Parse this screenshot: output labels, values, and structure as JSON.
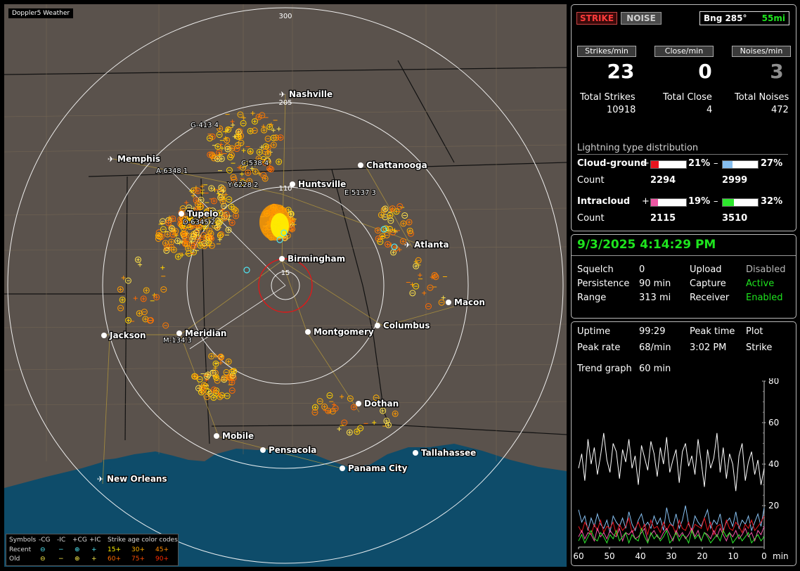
{
  "app": {
    "title": "Doppler5 Weather"
  },
  "map": {
    "range_labels": [
      "300",
      "205",
      "110",
      "15"
    ],
    "cities": [
      {
        "name": "Nashville",
        "airport": true
      },
      {
        "name": "Memphis",
        "airport": true
      },
      {
        "name": "Chattanooga",
        "airport": false
      },
      {
        "name": "Huntsville",
        "airport": false
      },
      {
        "name": "Tupelo",
        "airport": false
      },
      {
        "name": "Atlanta",
        "airport": true
      },
      {
        "name": "Birmingham",
        "airport": false
      },
      {
        "name": "Macon",
        "airport": false
      },
      {
        "name": "Jackson",
        "airport": false
      },
      {
        "name": "Meridian",
        "airport": false
      },
      {
        "name": "Montgomery",
        "airport": false
      },
      {
        "name": "Columbus",
        "airport": false
      },
      {
        "name": "Dothan",
        "airport": false
      },
      {
        "name": "Mobile",
        "airport": false
      },
      {
        "name": "Pensacola",
        "airport": false
      },
      {
        "name": "Tallahassee",
        "airport": false
      },
      {
        "name": "Panama City",
        "airport": false
      },
      {
        "name": "New Orleans",
        "airport": true
      }
    ],
    "storm_labels": [
      "G-413 4",
      "A-6348 1",
      "Y-6228 2",
      "C-538 4",
      "E-5137 3",
      "D-6345 2",
      "M-134 3"
    ]
  },
  "legend": {
    "headers": [
      "Symbols",
      "-CG",
      "-IC",
      "+CG",
      "+IC",
      "Strike age color codes"
    ],
    "recent_label": "Recent",
    "old_label": "Old",
    "recent_ages": [
      "15+",
      "30+",
      "45+"
    ],
    "old_ages": [
      "60+",
      "75+",
      "90+"
    ],
    "colors": {
      "recent_symbol": "#4fe3f0",
      "old_symbol": "#f5e84a",
      "a15": "#fff200",
      "a30": "#ffb000",
      "a45": "#ff8a00",
      "a60": "#ff6a00",
      "a75": "#ff4d00",
      "a90": "#ff2a00"
    }
  },
  "stats": {
    "strike_button": "STRIKE",
    "noise_button": "NOISE",
    "bearing": "Bng 285°",
    "distance": "55mi",
    "rate_labels": [
      "Strikes/min",
      "Close/min",
      "Noises/min"
    ],
    "rate_values": [
      "23",
      "0",
      "3"
    ],
    "total_labels": [
      "Total Strikes",
      "Total Close",
      "Total Noises"
    ],
    "total_values": [
      "10918",
      "4",
      "472"
    ],
    "distribution_title": "Lightning type distribution",
    "cg_label": "Cloud-ground",
    "ic_label": "Intracloud",
    "count_label": "Count",
    "cg_pos": {
      "sign": "+",
      "pct": "21%",
      "value": 21,
      "count": "2294",
      "color": "#e8141e"
    },
    "cg_neg": {
      "sign": "–",
      "pct": "27%",
      "value": 27,
      "count": "2999",
      "color": "#86bff0"
    },
    "ic_pos": {
      "sign": "+",
      "pct": "19%",
      "value": 19,
      "count": "2115",
      "color": "#ee58a6"
    },
    "ic_neg": {
      "sign": "–",
      "pct": "32%",
      "value": 32,
      "count": "3510",
      "color": "#2ee82e"
    }
  },
  "status": {
    "datetime": "9/3/2025 4:14:29 PM",
    "squelch_label": "Squelch",
    "squelch": "0",
    "persistence_label": "Persistence",
    "persistence": "90 min",
    "range_label": "Range",
    "range": "313 mi",
    "upload_label": "Upload",
    "upload": "Disabled",
    "capture_label": "Capture",
    "capture": "Active",
    "receiver_label": "Receiver",
    "receiver": "Enabled"
  },
  "trend": {
    "uptime_label": "Uptime",
    "uptime": "99:29",
    "peak_time_label": "Peak time",
    "peak_time": "3:02 PM",
    "plot_label": "Plot",
    "peak_rate_label": "Peak rate",
    "peak_rate": "68/min",
    "plot_value": "Strike",
    "trend_graph_label": "Trend graph",
    "trend_graph": "60 min",
    "x_labels": [
      "60",
      "50",
      "40",
      "30",
      "20",
      "10",
      "0"
    ],
    "x_unit": "min",
    "y_labels": [
      "80",
      "60",
      "40",
      "20"
    ]
  },
  "chart_data": {
    "type": "line",
    "title": "",
    "xlabel": "min",
    "ylabel": "",
    "xlim": [
      60,
      0
    ],
    "ylim": [
      0,
      80
    ],
    "series": [
      {
        "color": "#ffffff",
        "values": [
          38,
          45,
          32,
          52,
          40,
          48,
          35,
          44,
          55,
          42,
          36,
          50,
          46,
          33,
          47,
          41,
          52,
          38,
          44,
          30,
          49,
          43,
          37,
          51,
          45,
          34,
          48,
          40,
          53,
          36,
          42,
          47,
          31,
          46,
          50,
          39,
          44,
          35,
          52,
          41,
          29,
          47,
          38,
          43,
          55,
          36,
          48,
          33,
          45,
          40,
          27,
          44,
          50,
          32,
          41,
          46,
          35,
          42,
          30,
          38
        ]
      },
      {
        "color": "#86bff0",
        "values": [
          18,
          12,
          15,
          8,
          14,
          10,
          16,
          11,
          9,
          13,
          7,
          15,
          12,
          10,
          14,
          9,
          17,
          11,
          8,
          13,
          16,
          10,
          12,
          9,
          15,
          11,
          14,
          8,
          19,
          12,
          10,
          16,
          9,
          13,
          20,
          11,
          8,
          15,
          12,
          10,
          14,
          18,
          9,
          13,
          11,
          16,
          8,
          12,
          14,
          10,
          17,
          9,
          13,
          11,
          15,
          8,
          12,
          16,
          10,
          19
        ]
      },
      {
        "color": "#e8141e",
        "values": [
          10,
          7,
          12,
          9,
          6,
          11,
          8,
          13,
          7,
          10,
          9,
          12,
          6,
          11,
          8,
          10,
          14,
          7,
          9,
          12,
          8,
          11,
          6,
          13,
          9,
          10,
          7,
          12,
          8,
          11,
          10,
          6,
          13,
          9,
          8,
          12,
          7,
          11,
          10,
          9,
          14,
          8,
          12,
          6,
          10,
          11,
          7,
          13,
          9,
          8,
          12,
          10,
          7,
          11,
          9,
          13,
          8,
          10,
          12,
          15
        ]
      },
      {
        "color": "#ee58a6",
        "values": [
          5,
          8,
          4,
          7,
          6,
          3,
          9,
          5,
          7,
          4,
          8,
          6,
          5,
          9,
          3,
          7,
          6,
          8,
          4,
          5,
          7,
          9,
          3,
          6,
          8,
          5,
          4,
          7,
          9,
          6,
          3,
          8,
          5,
          7,
          4,
          6,
          9,
          5,
          8,
          3,
          7,
          6,
          4,
          8,
          5,
          9,
          6,
          3,
          7,
          5,
          8,
          4,
          6,
          9,
          5,
          7,
          3,
          8,
          6,
          10
        ]
      },
      {
        "color": "#2ee82e",
        "values": [
          3,
          6,
          2,
          5,
          8,
          4,
          3,
          7,
          5,
          2,
          6,
          4,
          8,
          3,
          5,
          7,
          2,
          6,
          4,
          3,
          9,
          5,
          2,
          7,
          4,
          6,
          3,
          5,
          8,
          2,
          4,
          7,
          3,
          6,
          5,
          2,
          8,
          4,
          6,
          3,
          7,
          5,
          2,
          4,
          6,
          3,
          8,
          5,
          7,
          2,
          4,
          6,
          3,
          5,
          7,
          2,
          4,
          6,
          3,
          5
        ]
      }
    ]
  }
}
